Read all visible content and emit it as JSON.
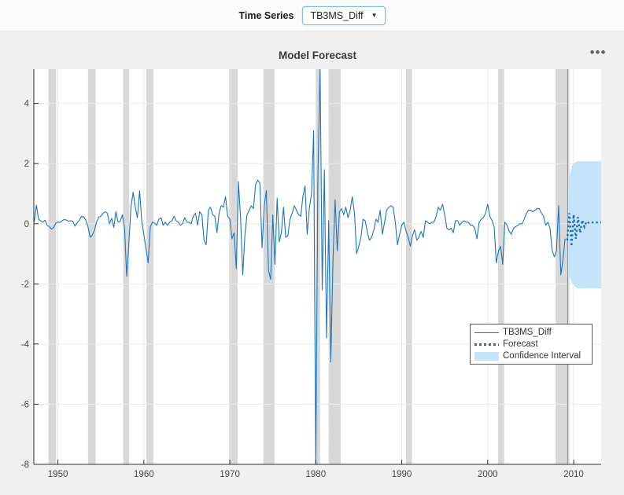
{
  "toolbar": {
    "time_series_label": "Time Series",
    "time_series_value": "TB3MS_Diff"
  },
  "icons": {
    "dropdown_arrow": "▼",
    "options_ellipsis": "•••"
  },
  "chart_data": {
    "type": "line",
    "title": "Model Forecast",
    "xlabel": "",
    "ylabel": "",
    "xlim": [
      1947.2,
      2013.2
    ],
    "ylim": [
      -8,
      5.14
    ],
    "x_ticks": [
      1950,
      1960,
      1970,
      1980,
      1990,
      2000,
      2010
    ],
    "y_ticks": [
      -8,
      -6,
      -4,
      -2,
      0,
      2,
      4
    ],
    "grid": true,
    "legend": {
      "position": "inside-right-bottom",
      "entries": [
        "TB3MS_Diff",
        "Forecast",
        "Confidence Interval"
      ]
    },
    "colors": {
      "series": "#1F74B8",
      "forecast": "#1B6FB5",
      "ci_fill": "#C6E4F9",
      "recession_band": "#D8D8D8",
      "grid": "#E9E9E9",
      "axis": "#303030",
      "tick_label": "#454545",
      "forecast_origin_line": "#8C8C8C"
    },
    "recession_bands": [
      [
        1948.9,
        1949.8
      ],
      [
        1953.5,
        1954.4
      ],
      [
        1957.6,
        1958.3
      ],
      [
        1960.3,
        1961.1
      ],
      [
        1969.9,
        1970.9
      ],
      [
        1973.9,
        1975.2
      ],
      [
        1980.0,
        1980.5
      ],
      [
        1981.5,
        1982.9
      ],
      [
        1990.5,
        1991.2
      ],
      [
        2001.2,
        2001.9
      ],
      [
        2007.9,
        2009.5
      ]
    ],
    "forecast_origin_line_x": 2009.3,
    "series": [
      {
        "name": "TB3MS_Diff",
        "style": "solid",
        "x_start": 1947.25,
        "x_step": 0.25,
        "y": [
          0.05,
          0.62,
          0.15,
          0.1,
          0.05,
          0.12,
          -0.05,
          -0.1,
          -0.18,
          -0.12,
          0.02,
          0.06,
          0.04,
          0.1,
          0.14,
          0.12,
          0.08,
          0.1,
          0.08,
          -0.08,
          0.04,
          0.12,
          0.25,
          0.22,
          0.12,
          -0.1,
          -0.45,
          -0.38,
          -0.22,
          0.05,
          0.22,
          0.25,
          0.35,
          0.4,
          0.35,
          0.0,
          0.18,
          -0.12,
          0.4,
          0.05,
          0.08,
          0.3,
          -0.15,
          -1.75,
          -0.7,
          0.55,
          1.05,
          0.55,
          0.2,
          1.1,
          0.1,
          -0.35,
          -0.85,
          -1.3,
          -0.1,
          0.05,
          0.02,
          -0.05,
          0.15,
          0.2,
          -0.05,
          0.05,
          -0.05,
          0.05,
          0.08,
          0.25,
          0.1,
          0.05,
          -0.05,
          0.0,
          0.2,
          0.05,
          0.05,
          0.0,
          0.25,
          0.35,
          -0.05,
          0.4,
          0.3,
          -0.55,
          -0.7,
          0.45,
          0.55,
          0.3,
          0.25,
          -0.3,
          0.35,
          0.6,
          0.55,
          0.9,
          0.25,
          0.15,
          -0.5,
          -0.3,
          -1.5,
          1.4,
          0.2,
          -1.7,
          -0.4,
          0.3,
          0.45,
          0.6,
          0.5,
          1.3,
          1.45,
          1.35,
          -0.8,
          0.6,
          1.1,
          -1.55,
          -1.85,
          0.3,
          -1.35,
          0.85,
          -0.6,
          -0.3,
          0.55,
          -0.45,
          -0.4,
          0.15,
          0.35,
          0.6,
          0.45,
          0.3,
          0.25,
          0.9,
          1.25,
          -0.35,
          0.5,
          1.0,
          3.1,
          -8.1,
          1.6,
          5.2,
          -2.2,
          1.8,
          -3.8,
          0.1,
          -4.6,
          -1.2,
          0.8,
          -0.9,
          0.4,
          0.5,
          0.3,
          0.55,
          0.2,
          0.45,
          0.9,
          0.35,
          -1.0,
          -0.75,
          -0.45,
          0.15,
          0.1,
          -0.3,
          -0.55,
          -0.45,
          -0.2,
          0.15,
          0.05,
          0.45,
          -0.35,
          0.05,
          0.45,
          0.55,
          0.6,
          0.55,
          0.05,
          -0.7,
          -0.35,
          -0.05,
          0.05,
          -0.25,
          -0.45,
          -0.75,
          -0.4,
          -0.2,
          -0.55,
          -0.45,
          -0.25,
          -0.45,
          0.1,
          0.05,
          0.0,
          0.05,
          0.05,
          0.25,
          0.55,
          0.45,
          0.65,
          0.3,
          -0.15,
          -0.2,
          -0.15,
          -0.3,
          0.1,
          0.1,
          -0.05,
          0.05,
          0.1,
          0.05,
          0.05,
          -0.05,
          -0.05,
          -0.15,
          -0.5,
          0.05,
          0.15,
          0.2,
          0.35,
          0.65,
          0.25,
          0.1,
          -0.1,
          -1.3,
          -0.9,
          -0.75,
          -1.35,
          0.05,
          -0.05,
          -0.25,
          -0.35,
          -0.15,
          -0.1,
          -0.05,
          0.0,
          0.0,
          0.15,
          0.35,
          0.45,
          0.45,
          0.4,
          0.45,
          0.5,
          0.5,
          0.35,
          0.25,
          -0.05,
          0.05,
          -0.15,
          -0.9,
          -1.1,
          -0.9,
          0.6,
          -1.7,
          -1.2,
          -0.5
        ]
      },
      {
        "name": "Forecast",
        "style": "dotted",
        "x_start": 2009.25,
        "x_step": 0.25,
        "y": [
          -0.55,
          0.35,
          -0.75,
          0.3,
          -0.5,
          0.22,
          -0.3,
          0.12,
          -0.1,
          0.08,
          0.03,
          0.05,
          0.04,
          0.05,
          0.04,
          0.05,
          0.04
        ]
      }
    ],
    "confidence_interval": {
      "name": "Confidence Interval",
      "x": [
        2009.25,
        2009.5,
        2009.75,
        2010.0,
        2010.25,
        2010.5,
        2011.0,
        2011.5,
        2012.0,
        2012.5,
        2013.0,
        2013.25
      ],
      "upper": [
        0.85,
        1.55,
        1.9,
        2.0,
        2.05,
        2.08,
        2.08,
        2.08,
        2.08,
        2.08,
        2.08,
        2.08
      ],
      "lower": [
        -1.45,
        -1.75,
        -1.95,
        -2.05,
        -2.1,
        -2.15,
        -2.15,
        -2.15,
        -2.15,
        -2.15,
        -2.15,
        -2.15
      ]
    }
  }
}
